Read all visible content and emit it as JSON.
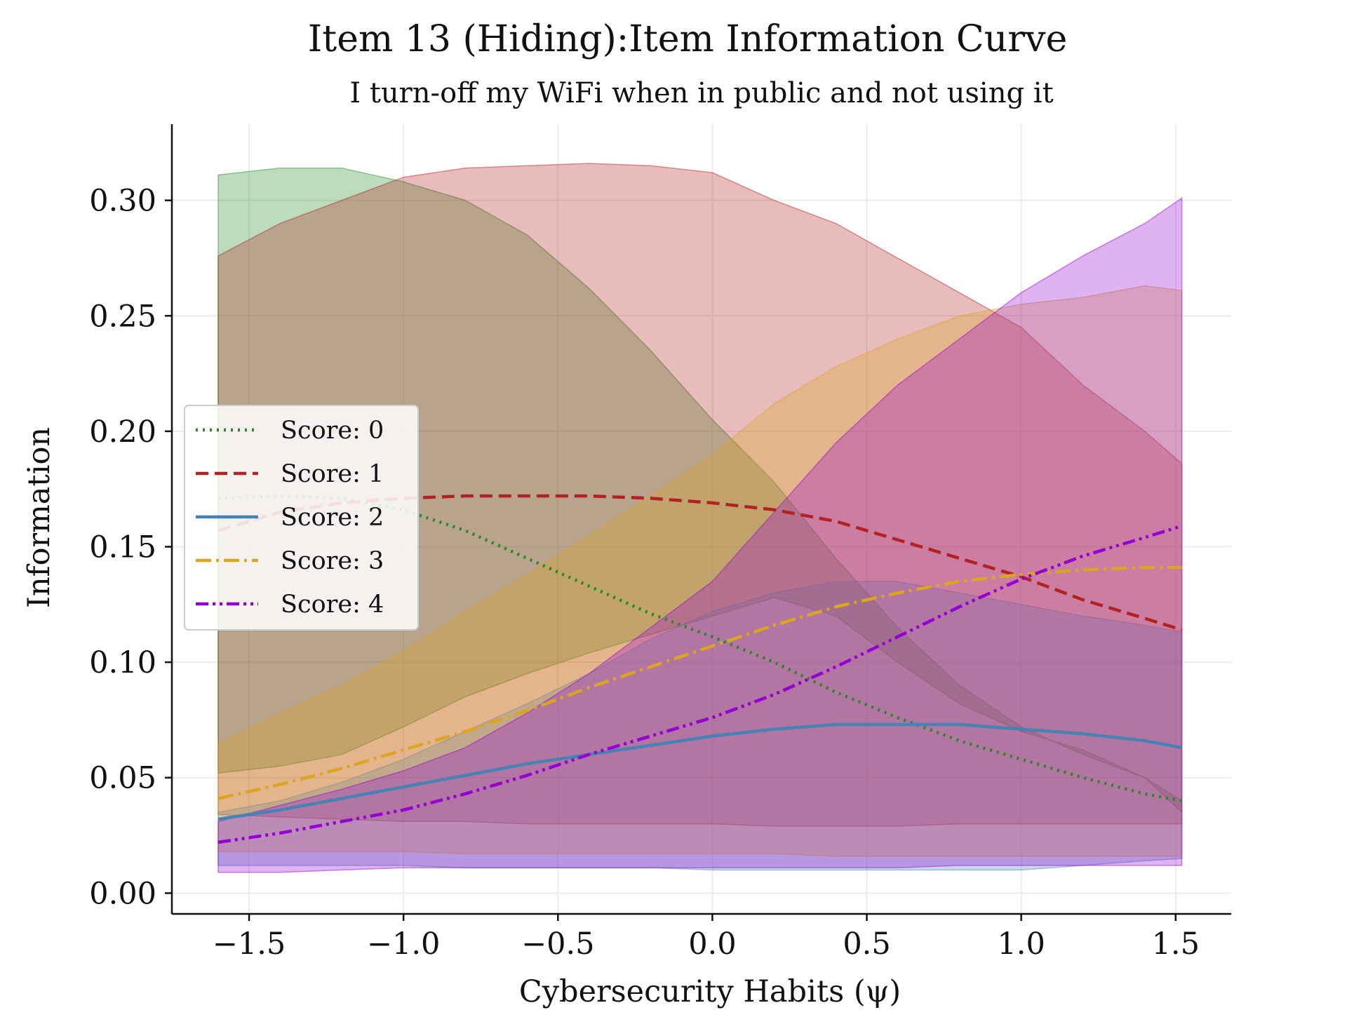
{
  "chart_data": {
    "type": "line",
    "title": "Item 13 (Hiding):Item Information Curve",
    "subtitle": "I turn-off my WiFi when in public and not using it",
    "xlabel": "Cybersecurity Habits (ψ)",
    "ylabel": "Information",
    "xlim": [
      -1.75,
      1.68
    ],
    "ylim": [
      -0.009,
      0.333
    ],
    "x_ticks": [
      -1.5,
      -1.0,
      -0.5,
      0.0,
      0.5,
      1.0,
      1.5
    ],
    "x_tick_labels": [
      "−1.5",
      "−1.0",
      "−0.5",
      "0.0",
      "0.5",
      "1.0",
      "1.5"
    ],
    "y_ticks": [
      0.0,
      0.05,
      0.1,
      0.15,
      0.2,
      0.25,
      0.3
    ],
    "y_tick_labels": [
      "0.00",
      "0.05",
      "0.10",
      "0.15",
      "0.20",
      "0.25",
      "0.30"
    ],
    "grid": true,
    "legend_position": "center-left",
    "series": [
      {
        "name": "Score: 0",
        "color": "#228b22",
        "style": "dotted",
        "x": [
          -1.6,
          -1.4,
          -1.2,
          -1.0,
          -0.8,
          -0.6,
          -0.4,
          -0.2,
          0.0,
          0.2,
          0.4,
          0.6,
          0.8,
          1.0,
          1.2,
          1.4,
          1.52
        ],
        "values": [
          0.171,
          0.172,
          0.171,
          0.166,
          0.157,
          0.145,
          0.133,
          0.121,
          0.111,
          0.1,
          0.087,
          0.076,
          0.066,
          0.058,
          0.05,
          0.043,
          0.04
        ],
        "band_lower": [
          0.052,
          0.055,
          0.06,
          0.072,
          0.085,
          0.095,
          0.104,
          0.112,
          0.12,
          0.128,
          0.12,
          0.1,
          0.082,
          0.07,
          0.062,
          0.05,
          0.035
        ],
        "band_upper": [
          0.311,
          0.314,
          0.314,
          0.308,
          0.3,
          0.285,
          0.262,
          0.235,
          0.205,
          0.178,
          0.145,
          0.115,
          0.09,
          0.072,
          0.06,
          0.05,
          0.04
        ]
      },
      {
        "name": "Score: 1",
        "color": "#b22222",
        "style": "dashed",
        "x": [
          -1.6,
          -1.4,
          -1.2,
          -1.0,
          -0.8,
          -0.6,
          -0.4,
          -0.2,
          0.0,
          0.2,
          0.4,
          0.6,
          0.8,
          1.0,
          1.2,
          1.4,
          1.52
        ],
        "values": [
          0.157,
          0.165,
          0.169,
          0.171,
          0.172,
          0.172,
          0.172,
          0.171,
          0.169,
          0.166,
          0.161,
          0.153,
          0.145,
          0.137,
          0.127,
          0.119,
          0.114
        ],
        "band_lower": [
          0.034,
          0.033,
          0.032,
          0.031,
          0.031,
          0.03,
          0.03,
          0.03,
          0.03,
          0.029,
          0.029,
          0.029,
          0.03,
          0.03,
          0.03,
          0.03,
          0.03
        ],
        "band_upper": [
          0.276,
          0.29,
          0.3,
          0.31,
          0.314,
          0.315,
          0.316,
          0.315,
          0.312,
          0.3,
          0.29,
          0.275,
          0.26,
          0.245,
          0.22,
          0.2,
          0.186
        ]
      },
      {
        "name": "Score: 2",
        "color": "#4682b4",
        "style": "solid",
        "x": [
          -1.6,
          -1.4,
          -1.2,
          -1.0,
          -0.8,
          -0.6,
          -0.4,
          -0.2,
          0.0,
          0.2,
          0.4,
          0.6,
          0.8,
          1.0,
          1.2,
          1.4,
          1.52
        ],
        "values": [
          0.032,
          0.036,
          0.041,
          0.046,
          0.051,
          0.056,
          0.06,
          0.064,
          0.068,
          0.071,
          0.073,
          0.073,
          0.073,
          0.071,
          0.069,
          0.066,
          0.063
        ],
        "band_lower": [
          0.012,
          0.012,
          0.012,
          0.012,
          0.011,
          0.011,
          0.011,
          0.011,
          0.01,
          0.01,
          0.01,
          0.01,
          0.01,
          0.01,
          0.012,
          0.014,
          0.015
        ],
        "band_upper": [
          0.035,
          0.04,
          0.048,
          0.058,
          0.07,
          0.082,
          0.095,
          0.11,
          0.122,
          0.13,
          0.135,
          0.135,
          0.13,
          0.125,
          0.12,
          0.116,
          0.113
        ]
      },
      {
        "name": "Score: 3",
        "color": "#daa520",
        "style": "dashdot",
        "x": [
          -1.6,
          -1.4,
          -1.2,
          -1.0,
          -0.8,
          -0.6,
          -0.4,
          -0.2,
          0.0,
          0.2,
          0.4,
          0.6,
          0.8,
          1.0,
          1.2,
          1.4,
          1.52
        ],
        "values": [
          0.041,
          0.047,
          0.054,
          0.062,
          0.07,
          0.079,
          0.089,
          0.098,
          0.107,
          0.116,
          0.124,
          0.13,
          0.135,
          0.138,
          0.14,
          0.141,
          0.141
        ],
        "band_lower": [
          0.018,
          0.018,
          0.018,
          0.018,
          0.017,
          0.017,
          0.017,
          0.017,
          0.017,
          0.017,
          0.016,
          0.016,
          0.016,
          0.016,
          0.016,
          0.016,
          0.016
        ],
        "band_upper": [
          0.065,
          0.078,
          0.09,
          0.105,
          0.122,
          0.138,
          0.155,
          0.172,
          0.19,
          0.212,
          0.228,
          0.24,
          0.25,
          0.255,
          0.258,
          0.263,
          0.261
        ]
      },
      {
        "name": "Score: 4",
        "color": "#9400d3",
        "style": "dashdotdot",
        "x": [
          -1.6,
          -1.4,
          -1.2,
          -1.0,
          -0.8,
          -0.6,
          -0.4,
          -0.2,
          0.0,
          0.2,
          0.4,
          0.6,
          0.8,
          1.0,
          1.2,
          1.4,
          1.52
        ],
        "values": [
          0.022,
          0.026,
          0.031,
          0.036,
          0.043,
          0.051,
          0.06,
          0.068,
          0.076,
          0.086,
          0.098,
          0.111,
          0.124,
          0.136,
          0.146,
          0.154,
          0.159
        ],
        "band_lower": [
          0.009,
          0.009,
          0.01,
          0.011,
          0.011,
          0.011,
          0.011,
          0.011,
          0.011,
          0.011,
          0.011,
          0.011,
          0.012,
          0.012,
          0.012,
          0.012,
          0.012
        ],
        "band_upper": [
          0.031,
          0.038,
          0.045,
          0.053,
          0.063,
          0.078,
          0.095,
          0.115,
          0.135,
          0.165,
          0.195,
          0.22,
          0.24,
          0.26,
          0.276,
          0.29,
          0.301
        ]
      }
    ]
  }
}
